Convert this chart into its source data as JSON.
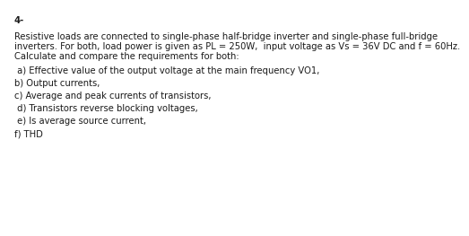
{
  "background_color": "#ffffff",
  "question_number": "4-",
  "paragraph_lines": [
    "Resistive loads are connected to single-phase half-bridge inverter and single-phase full-bridge",
    "inverters. For both, load power is given as PL = 250W,  input voltage as Vs = 36V DC and f = 60Hz.",
    "Calculate and compare the requirements for both:"
  ],
  "items": [
    " a) Effective value of the output voltage at the main frequency VO1,",
    "b) Output currents,",
    "c) Average and peak currents of transistors,",
    " d) Transistors reverse blocking voltages,",
    " e) Is average source current,",
    "f) THD"
  ],
  "fontsize": 7.2,
  "text_color": "#1a1a1a",
  "font_family": "DejaVu Sans"
}
